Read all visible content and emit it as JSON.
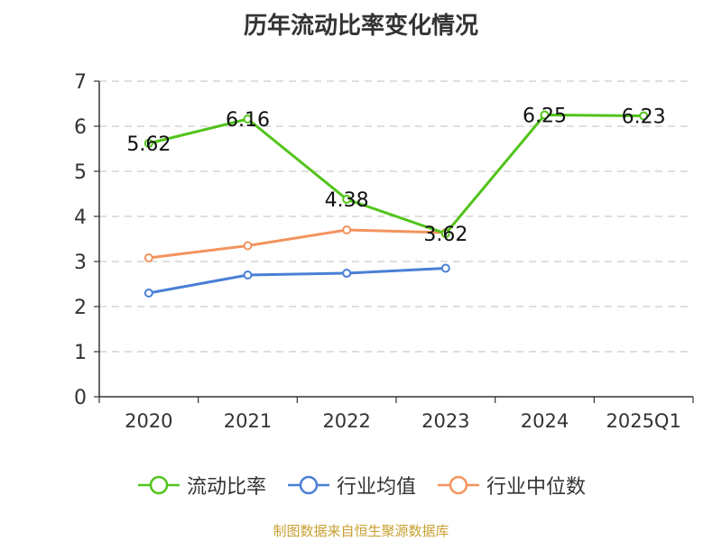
{
  "chart_data": {
    "type": "line",
    "title": "历年流动比率变化情况",
    "categories": [
      "2020",
      "2021",
      "2022",
      "2023",
      "2024",
      "2025Q1"
    ],
    "ylim": [
      0,
      7
    ],
    "yticks": [
      0,
      1,
      2,
      3,
      4,
      5,
      6,
      7
    ],
    "grid": true,
    "legend_position": "bottom",
    "series": [
      {
        "name": "流动比率",
        "color": "#52c41a",
        "values": [
          5.62,
          6.16,
          4.38,
          3.62,
          6.25,
          6.23
        ],
        "labels": [
          "5.62",
          "6.16",
          "4.38",
          "3.62",
          "6.25",
          "6.23"
        ]
      },
      {
        "name": "行业均值",
        "color": "#4a7fd6",
        "values": [
          2.3,
          2.7,
          2.74,
          2.85,
          null,
          null
        ]
      },
      {
        "name": "行业中位数",
        "color": "#f4935e",
        "values": [
          3.08,
          3.35,
          3.7,
          3.64,
          null,
          null
        ]
      }
    ]
  },
  "source": "制图数据来自恒生聚源数据库"
}
